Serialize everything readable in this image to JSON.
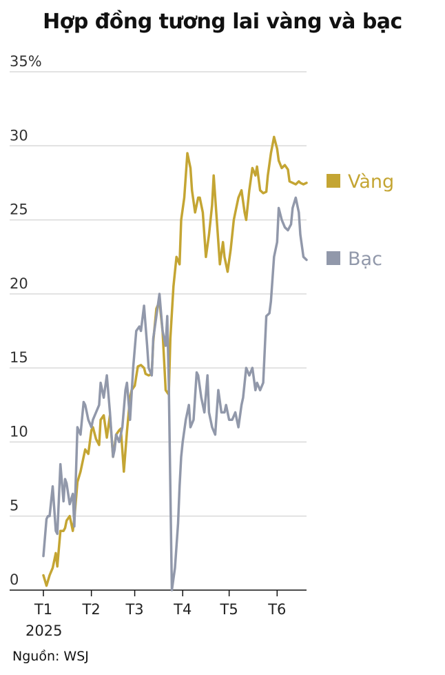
{
  "chart_data": {
    "type": "line",
    "title": "Hợp đồng tương lai vàng và bạc",
    "y_ticks": [
      {
        "value": 0,
        "label": "0"
      },
      {
        "value": 5,
        "label": "5"
      },
      {
        "value": 10,
        "label": "10"
      },
      {
        "value": 15,
        "label": "15"
      },
      {
        "value": 20,
        "label": "20"
      },
      {
        "value": 25,
        "label": "25"
      },
      {
        "value": 30,
        "label": "30"
      },
      {
        "value": 35,
        "label": "35%"
      }
    ],
    "x_ticks": [
      {
        "value": 0,
        "label": "T1"
      },
      {
        "value": 31,
        "label": "T2"
      },
      {
        "value": 59,
        "label": "T3"
      },
      {
        "value": 90,
        "label": "T4"
      },
      {
        "value": 120,
        "label": "T5"
      },
      {
        "value": 151,
        "label": "T6"
      }
    ],
    "year_label": "2025",
    "x_unit": "days since 2025-01-01",
    "ylim": [
      0,
      35
    ],
    "xlim": [
      0,
      170
    ],
    "grid": true,
    "legend_position": "right",
    "series": [
      {
        "name": "Vàng",
        "color": "#c4a533",
        "x": [
          0,
          2,
          4,
          6,
          8,
          9,
          11,
          13,
          14,
          15,
          17,
          19,
          20,
          22,
          24,
          26,
          27,
          29,
          31,
          32,
          34,
          36,
          37,
          39,
          41,
          43,
          45,
          47,
          49,
          50,
          52,
          54,
          56,
          57,
          59,
          61,
          63,
          65,
          66,
          68,
          70,
          71,
          73,
          75,
          77,
          79,
          81,
          82,
          84,
          86,
          88,
          89,
          91,
          93,
          95,
          96,
          98,
          100,
          101,
          103,
          105,
          107,
          109,
          110,
          112,
          114,
          116,
          117,
          119,
          121,
          123,
          124,
          126,
          128,
          130,
          131,
          133,
          135,
          137,
          138,
          140,
          142,
          144,
          145,
          147,
          149,
          151,
          152,
          154,
          156,
          158,
          159,
          161,
          163,
          165,
          166,
          168,
          170
        ],
        "y": [
          1.0,
          0.3,
          1.0,
          1.5,
          2.5,
          1.6,
          4.0,
          4.0,
          4.2,
          4.7,
          5.0,
          4.0,
          4.8,
          7.3,
          8.0,
          9.0,
          9.5,
          9.2,
          10.8,
          11.0,
          10.2,
          9.8,
          11.5,
          11.8,
          10.3,
          11.8,
          9.0,
          10.5,
          10.8,
          10.9,
          8.0,
          10.7,
          13.0,
          13.5,
          13.8,
          15.1,
          15.2,
          15.0,
          14.6,
          14.5,
          14.6,
          16.8,
          19.0,
          19.5,
          17.5,
          13.5,
          13.2,
          17.0,
          20.5,
          22.5,
          22.0,
          25.0,
          26.5,
          29.5,
          28.5,
          27.0,
          25.5,
          26.5,
          26.5,
          25.5,
          22.5,
          24.0,
          26.0,
          28.0,
          25.0,
          22.0,
          23.5,
          22.5,
          21.5,
          23.0,
          25.0,
          25.5,
          26.5,
          27.0,
          25.5,
          25.0,
          27.0,
          28.5,
          28.0,
          28.6,
          27.0,
          26.8,
          26.9,
          28.0,
          29.5,
          30.6,
          29.8,
          29.0,
          28.5,
          28.7,
          28.4,
          27.6,
          27.5,
          27.4,
          27.6,
          27.5,
          27.4,
          27.5
        ]
      },
      {
        "name": "Bạc",
        "color": "#9198aa",
        "x": [
          0,
          2,
          3,
          4,
          6,
          8,
          9,
          11,
          13,
          14,
          15,
          17,
          19,
          20,
          22,
          24,
          26,
          27,
          29,
          31,
          32,
          34,
          36,
          37,
          39,
          41,
          43,
          45,
          46,
          47,
          49,
          51,
          53,
          54,
          56,
          58,
          60,
          62,
          63,
          65,
          67,
          68,
          70,
          71,
          73,
          75,
          77,
          79,
          80,
          81,
          83,
          85,
          87,
          88,
          89,
          90,
          92,
          94,
          95,
          97,
          99,
          100,
          102,
          104,
          106,
          107,
          109,
          111,
          113,
          115,
          117,
          118,
          120,
          122,
          124,
          126,
          128,
          129,
          131,
          133,
          135,
          137,
          138,
          140,
          142,
          144,
          146,
          147,
          149,
          151,
          152,
          154,
          156,
          158,
          160,
          161,
          163,
          165,
          166,
          168,
          170
        ],
        "y": [
          2.3,
          4.8,
          5.0,
          5.0,
          7.0,
          4.0,
          3.8,
          8.5,
          6.0,
          7.5,
          7.2,
          5.8,
          6.5,
          4.3,
          11.0,
          10.5,
          12.7,
          12.5,
          11.5,
          11.0,
          11.5,
          12.0,
          12.5,
          14.0,
          13.0,
          14.5,
          12.0,
          9.0,
          9.5,
          10.5,
          10.0,
          11.0,
          13.5,
          14.0,
          11.5,
          15.0,
          17.5,
          17.8,
          17.5,
          19.2,
          16.5,
          15.0,
          14.5,
          17.0,
          18.5,
          20.0,
          17.5,
          16.5,
          18.5,
          14.0,
          0.0,
          1.5,
          4.5,
          7.0,
          9.0,
          10.0,
          11.5,
          12.5,
          11.0,
          11.5,
          14.7,
          14.5,
          13.0,
          12.0,
          14.5,
          12.0,
          11.0,
          10.5,
          13.5,
          12.0,
          12.0,
          12.5,
          11.5,
          11.5,
          12.0,
          11.0,
          12.5,
          13.0,
          15.0,
          14.5,
          15.0,
          13.5,
          14.0,
          13.5,
          14.0,
          18.5,
          18.7,
          19.5,
          22.5,
          23.5,
          25.8,
          25.0,
          24.5,
          24.3,
          24.7,
          25.8,
          26.5,
          25.5,
          24.0,
          22.5,
          22.3
        ]
      }
    ]
  },
  "source_label": "Nguồn: WSJ"
}
